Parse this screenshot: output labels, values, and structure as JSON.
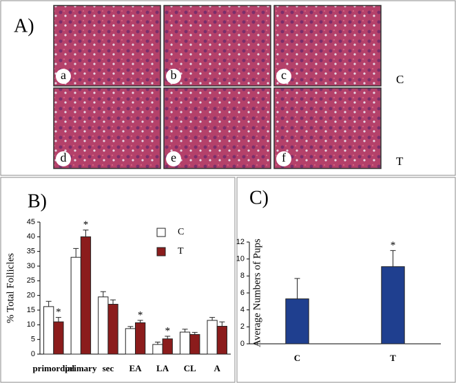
{
  "panel_a": {
    "label": "A)",
    "images": [
      "a",
      "b",
      "c",
      "d",
      "e",
      "f"
    ],
    "rows": [
      "C",
      "T"
    ]
  },
  "chart_data": [
    {
      "type": "bar",
      "panel_label": "B)",
      "y_label": "% Total Follicles",
      "categories": [
        "primordial",
        "primary",
        "sec",
        "EA",
        "LA",
        "CL",
        "A"
      ],
      "series": [
        {
          "name": "C",
          "color": "#ffffff",
          "values": [
            16.2,
            33,
            19.5,
            8.7,
            3.3,
            7.5,
            11.5
          ],
          "errors": [
            1.8,
            3,
            1.8,
            0.7,
            0.8,
            1,
            1
          ],
          "significance": [
            null,
            null,
            null,
            null,
            null,
            null,
            null
          ]
        },
        {
          "name": "T",
          "color": "#8b1c1c",
          "values": [
            11,
            40,
            17,
            10.7,
            5.2,
            6.7,
            9.5
          ],
          "errors": [
            1.5,
            2.3,
            1.5,
            0.8,
            0.9,
            0.7,
            1.5
          ],
          "significance": [
            "*",
            "*",
            null,
            "*",
            "*",
            null,
            null
          ]
        }
      ],
      "ylim": [
        0,
        45
      ],
      "yticks": [
        0,
        5,
        10,
        15,
        20,
        25,
        30,
        35,
        40,
        45
      ],
      "legend": "top-right"
    },
    {
      "type": "bar",
      "panel_label": "C)",
      "y_label": "Average Numbers of Pups",
      "categories": [
        "C",
        "T"
      ],
      "series": [
        {
          "name": null,
          "color": "#1f3f8f",
          "values": [
            5.3,
            9.1
          ],
          "errors": [
            2.4,
            1.9
          ],
          "significance": [
            null,
            "*"
          ]
        }
      ],
      "ylim": [
        0,
        12
      ],
      "yticks": [
        0,
        2,
        4,
        6,
        8,
        10,
        12
      ],
      "legend": null
    }
  ]
}
